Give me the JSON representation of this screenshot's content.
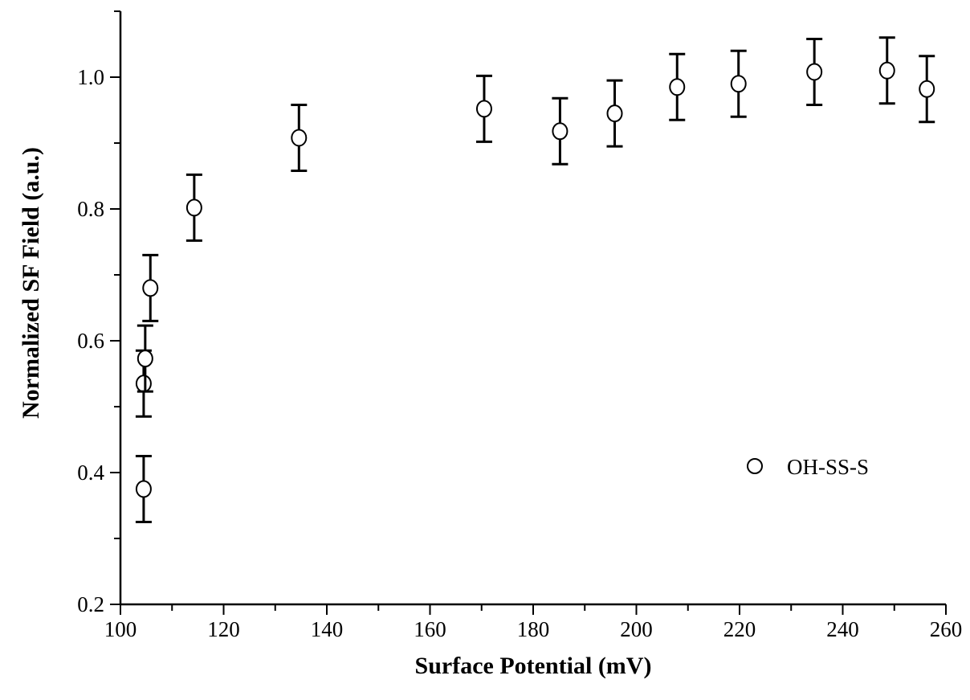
{
  "chart_data": {
    "type": "scatter",
    "xlabel": "Surface Potential (mV)",
    "ylabel": "Normalized SF Field (a.u.)",
    "xlim": [
      100,
      260
    ],
    "ylim": [
      0.2,
      1.1
    ],
    "x_ticks": [
      100,
      120,
      140,
      160,
      180,
      200,
      220,
      240,
      260
    ],
    "x_tick_labels": [
      "100",
      "120",
      "140",
      "160",
      "180",
      "200",
      "220",
      "240",
      "260"
    ],
    "y_ticks": [
      0.2,
      0.4,
      0.6,
      0.8,
      1.0
    ],
    "y_tick_labels": [
      "0.2",
      "0.4",
      "0.6",
      "0.8",
      "1.0"
    ],
    "grid": false,
    "legend_position": "right",
    "series": [
      {
        "name": "OH-SS-S",
        "marker": "open-circle",
        "color": "#000000",
        "x": [
          104.5,
          104.5,
          104.8,
          105.8,
          114.3,
          134.6,
          170.5,
          185.2,
          195.8,
          207.9,
          219.8,
          234.5,
          248.6,
          256.3
        ],
        "y": [
          0.375,
          0.535,
          0.573,
          0.68,
          0.802,
          0.908,
          0.952,
          0.918,
          0.945,
          0.985,
          0.99,
          1.008,
          1.01,
          0.982
        ],
        "error": [
          0.05,
          0.05,
          0.05,
          0.05,
          0.05,
          0.05,
          0.05,
          0.05,
          0.05,
          0.05,
          0.05,
          0.05,
          0.05,
          0.05
        ]
      }
    ]
  }
}
